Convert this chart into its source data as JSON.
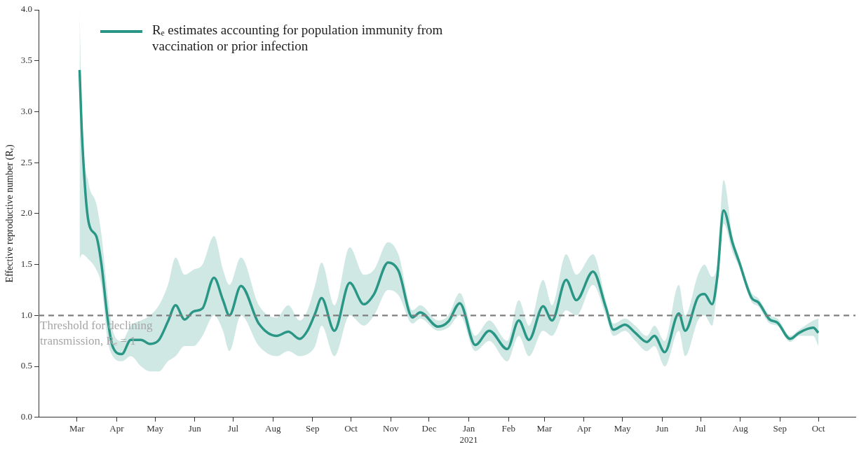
{
  "chart_data": {
    "type": "line",
    "ylabel": "Effective reproductive number (Rₑ)",
    "xlim": [
      "2020-01-31",
      "2021-10-30"
    ],
    "xticks": [
      {
        "value": "2020-03-01",
        "label": "Mar"
      },
      {
        "value": "2020-04-01",
        "label": "Apr"
      },
      {
        "value": "2020-05-01",
        "label": "May"
      },
      {
        "value": "2020-06-01",
        "label": "Jun"
      },
      {
        "value": "2020-07-01",
        "label": "Jul"
      },
      {
        "value": "2020-08-01",
        "label": "Aug"
      },
      {
        "value": "2020-09-01",
        "label": "Sep"
      },
      {
        "value": "2020-10-01",
        "label": "Oct"
      },
      {
        "value": "2020-11-01",
        "label": "Nov"
      },
      {
        "value": "2020-12-01",
        "label": "Dec"
      },
      {
        "value": "2021-01-01",
        "label": "Jan\n2021"
      },
      {
        "value": "2021-02-01",
        "label": "Feb"
      },
      {
        "value": "2021-03-01",
        "label": "Mar"
      },
      {
        "value": "2021-04-01",
        "label": "Apr"
      },
      {
        "value": "2021-05-01",
        "label": "May"
      },
      {
        "value": "2021-06-01",
        "label": "Jun"
      },
      {
        "value": "2021-07-01",
        "label": "Jul"
      },
      {
        "value": "2021-08-01",
        "label": "Aug"
      },
      {
        "value": "2021-09-01",
        "label": "Sep"
      },
      {
        "value": "2021-10-01",
        "label": "Oct"
      }
    ],
    "ylim": [
      0,
      4
    ],
    "yticks": [
      {
        "value": 0,
        "label": "0.0"
      },
      {
        "value": 0.5,
        "label": "0.5"
      },
      {
        "value": 1,
        "label": "1.0"
      },
      {
        "value": 1.5,
        "label": "1.5"
      },
      {
        "value": 2,
        "label": "2.0"
      },
      {
        "value": 2.5,
        "label": "2.5"
      },
      {
        "value": 3,
        "label": "3.0"
      },
      {
        "value": 3.5,
        "label": "3.5"
      },
      {
        "value": 4,
        "label": "4.0"
      }
    ],
    "grid": false,
    "legend": "top left",
    "marker": "none",
    "line_style": "solid",
    "ref_lines": [
      {
        "axis": "y",
        "value": 1,
        "label": "Threshold for declining transmission, Rₑ = 1",
        "color": "#7f7f7f",
        "line_style": "dashed"
      }
    ],
    "series": [
      {
        "name": "Rₑ estimates accounting for population immunity from vaccination or prior infection",
        "color": "#2a9686",
        "x": [
          "2020-03-03",
          "2020-03-05",
          "2020-03-10",
          "2020-03-16",
          "2020-03-20",
          "2020-03-25",
          "2020-03-29",
          "2020-04-05",
          "2020-04-12",
          "2020-04-20",
          "2020-04-27",
          "2020-05-04",
          "2020-05-11",
          "2020-05-17",
          "2020-05-24",
          "2020-05-31",
          "2020-06-07",
          "2020-06-16",
          "2020-06-23",
          "2020-06-28",
          "2020-07-07",
          "2020-07-21",
          "2020-08-04",
          "2020-08-13",
          "2020-08-22",
          "2020-08-28",
          "2020-09-03",
          "2020-09-08",
          "2020-09-18",
          "2020-09-30",
          "2020-10-11",
          "2020-10-19",
          "2020-10-30",
          "2020-11-07",
          "2020-11-18",
          "2020-11-24",
          "2020-12-08",
          "2020-12-16",
          "2020-12-25",
          "2021-01-06",
          "2021-01-17",
          "2021-01-31",
          "2021-02-09",
          "2021-02-17",
          "2021-02-28",
          "2021-03-07",
          "2021-03-18",
          "2021-03-26",
          "2021-04-08",
          "2021-04-18",
          "2021-04-24",
          "2021-05-03",
          "2021-05-11",
          "2021-05-20",
          "2021-05-26",
          "2021-06-03",
          "2021-06-14",
          "2021-06-19",
          "2021-06-29",
          "2021-07-04",
          "2021-07-10",
          "2021-07-14",
          "2021-07-19",
          "2021-07-26",
          "2021-07-31",
          "2021-08-10",
          "2021-08-15",
          "2021-08-24",
          "2021-08-30",
          "2021-09-09",
          "2021-09-16",
          "2021-09-27",
          "2021-10-01"
        ],
        "values": [
          3.41,
          2.74,
          1.92,
          1.78,
          1.51,
          0.96,
          0.69,
          0.62,
          0.76,
          0.76,
          0.72,
          0.76,
          0.94,
          1.1,
          0.96,
          1.04,
          1.07,
          1.37,
          1.15,
          1.0,
          1.29,
          0.92,
          0.8,
          0.84,
          0.77,
          0.85,
          1.02,
          1.17,
          0.85,
          1.32,
          1.11,
          1.21,
          1.52,
          1.44,
          0.98,
          1.03,
          0.89,
          0.94,
          1.12,
          0.71,
          0.85,
          0.67,
          0.95,
          0.76,
          1.09,
          0.95,
          1.35,
          1.15,
          1.43,
          1.08,
          0.86,
          0.91,
          0.83,
          0.74,
          0.8,
          0.64,
          1.02,
          0.85,
          1.18,
          1.21,
          1.11,
          1.37,
          2.03,
          1.71,
          1.53,
          1.17,
          1.13,
          0.96,
          0.93,
          0.77,
          0.83,
          0.88,
          0.83
        ],
        "upper": [
          4.0,
          2.9,
          2.3,
          2.1,
          1.8,
          1.2,
          0.85,
          0.75,
          0.9,
          0.95,
          1.0,
          1.1,
          1.3,
          1.57,
          1.4,
          1.45,
          1.5,
          1.78,
          1.45,
          1.3,
          1.57,
          1.1,
          0.98,
          1.1,
          0.95,
          1.05,
          1.3,
          1.52,
          1.1,
          1.67,
          1.4,
          1.45,
          1.72,
          1.6,
          1.05,
          1.1,
          0.95,
          1.0,
          1.22,
          0.8,
          0.95,
          0.75,
          1.15,
          0.9,
          1.35,
          1.1,
          1.6,
          1.4,
          1.6,
          1.15,
          0.92,
          0.97,
          0.9,
          0.8,
          0.9,
          0.75,
          1.3,
          1.0,
          1.4,
          1.5,
          1.38,
          1.5,
          2.33,
          1.78,
          1.58,
          1.22,
          1.17,
          1.0,
          0.97,
          0.8,
          0.86,
          0.95,
          0.97
        ],
        "lower": [
          1.55,
          1.6,
          1.55,
          1.45,
          1.3,
          0.75,
          0.6,
          0.55,
          0.6,
          0.5,
          0.45,
          0.45,
          0.55,
          0.6,
          0.7,
          0.7,
          0.8,
          1.0,
          0.85,
          0.65,
          1.0,
          0.7,
          0.6,
          0.65,
          0.6,
          0.62,
          0.7,
          0.9,
          0.6,
          1.0,
          0.9,
          1.0,
          1.25,
          1.2,
          0.92,
          0.97,
          0.85,
          0.88,
          1.0,
          0.65,
          0.75,
          0.55,
          0.8,
          0.6,
          0.85,
          0.8,
          1.05,
          1.0,
          1.3,
          1.0,
          0.8,
          0.85,
          0.75,
          0.65,
          0.7,
          0.5,
          0.85,
          0.6,
          0.95,
          1.0,
          0.9,
          1.25,
          1.9,
          1.62,
          1.48,
          1.13,
          1.09,
          0.92,
          0.9,
          0.74,
          0.8,
          0.8,
          0.7
        ]
      }
    ]
  }
}
